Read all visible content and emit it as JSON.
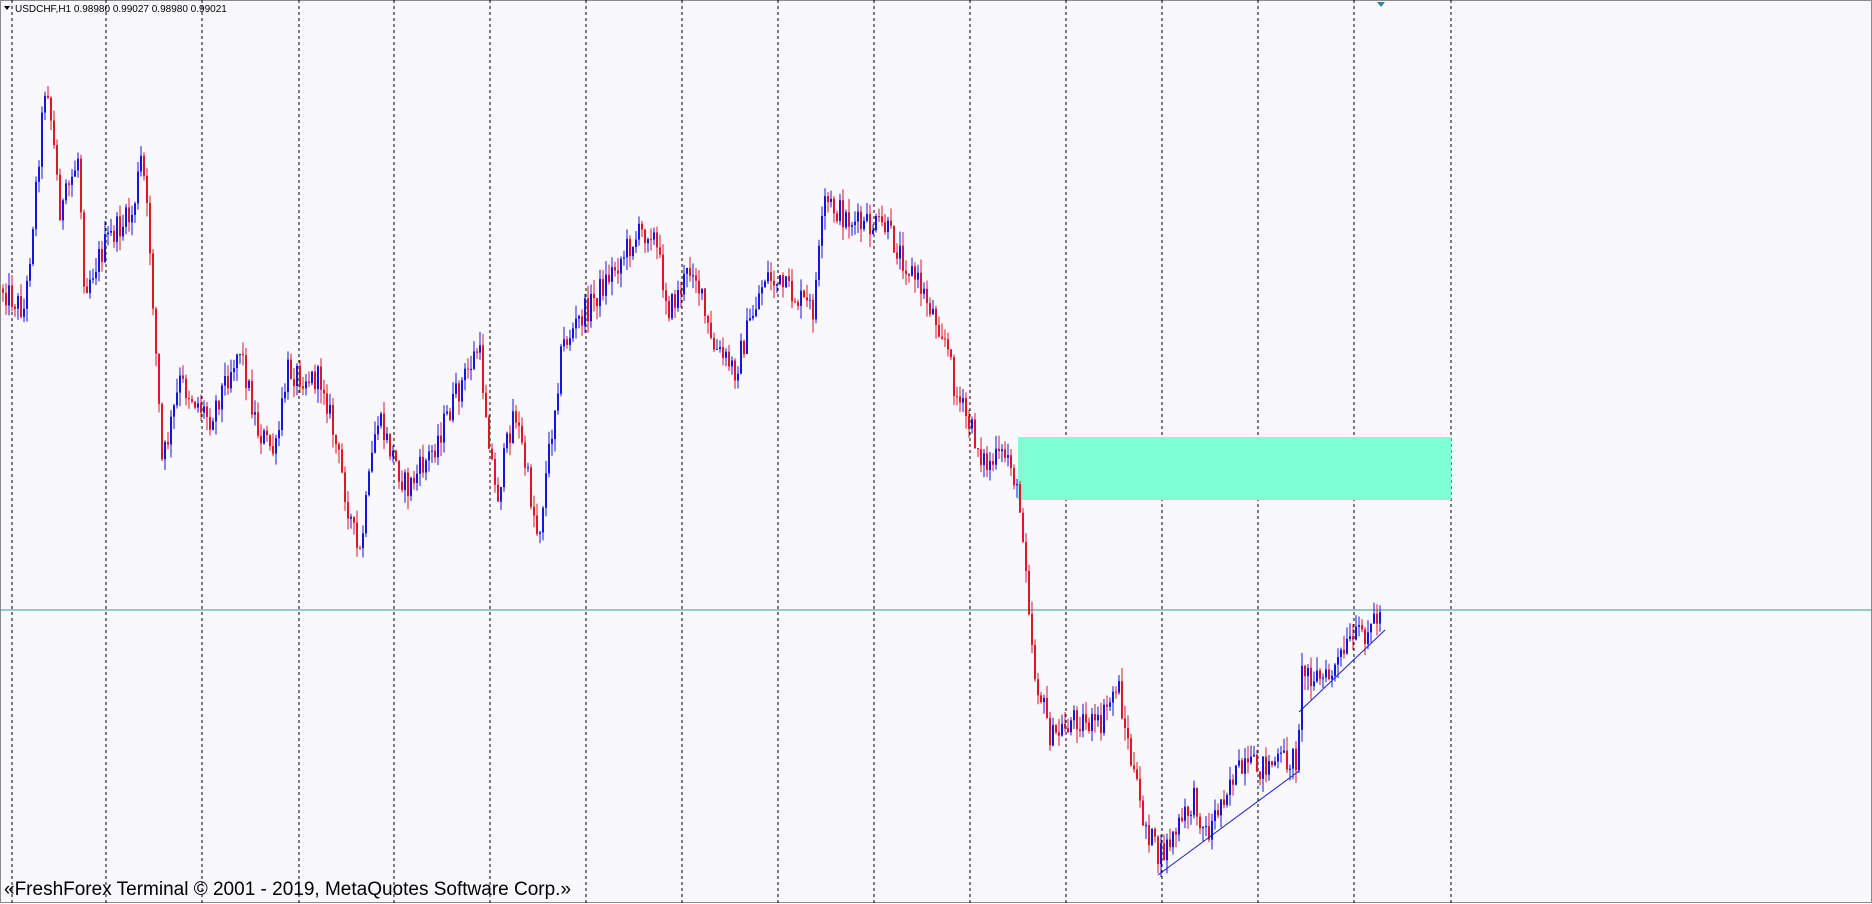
{
  "header": {
    "symbol_info": "USDCHF,H1  0.98980 0.99027 0.98980 0.99021"
  },
  "footer": {
    "copyright": "«FreshForex Terminal © 2001 - 2019, MetaQuotes Software Corp.»"
  }
}
